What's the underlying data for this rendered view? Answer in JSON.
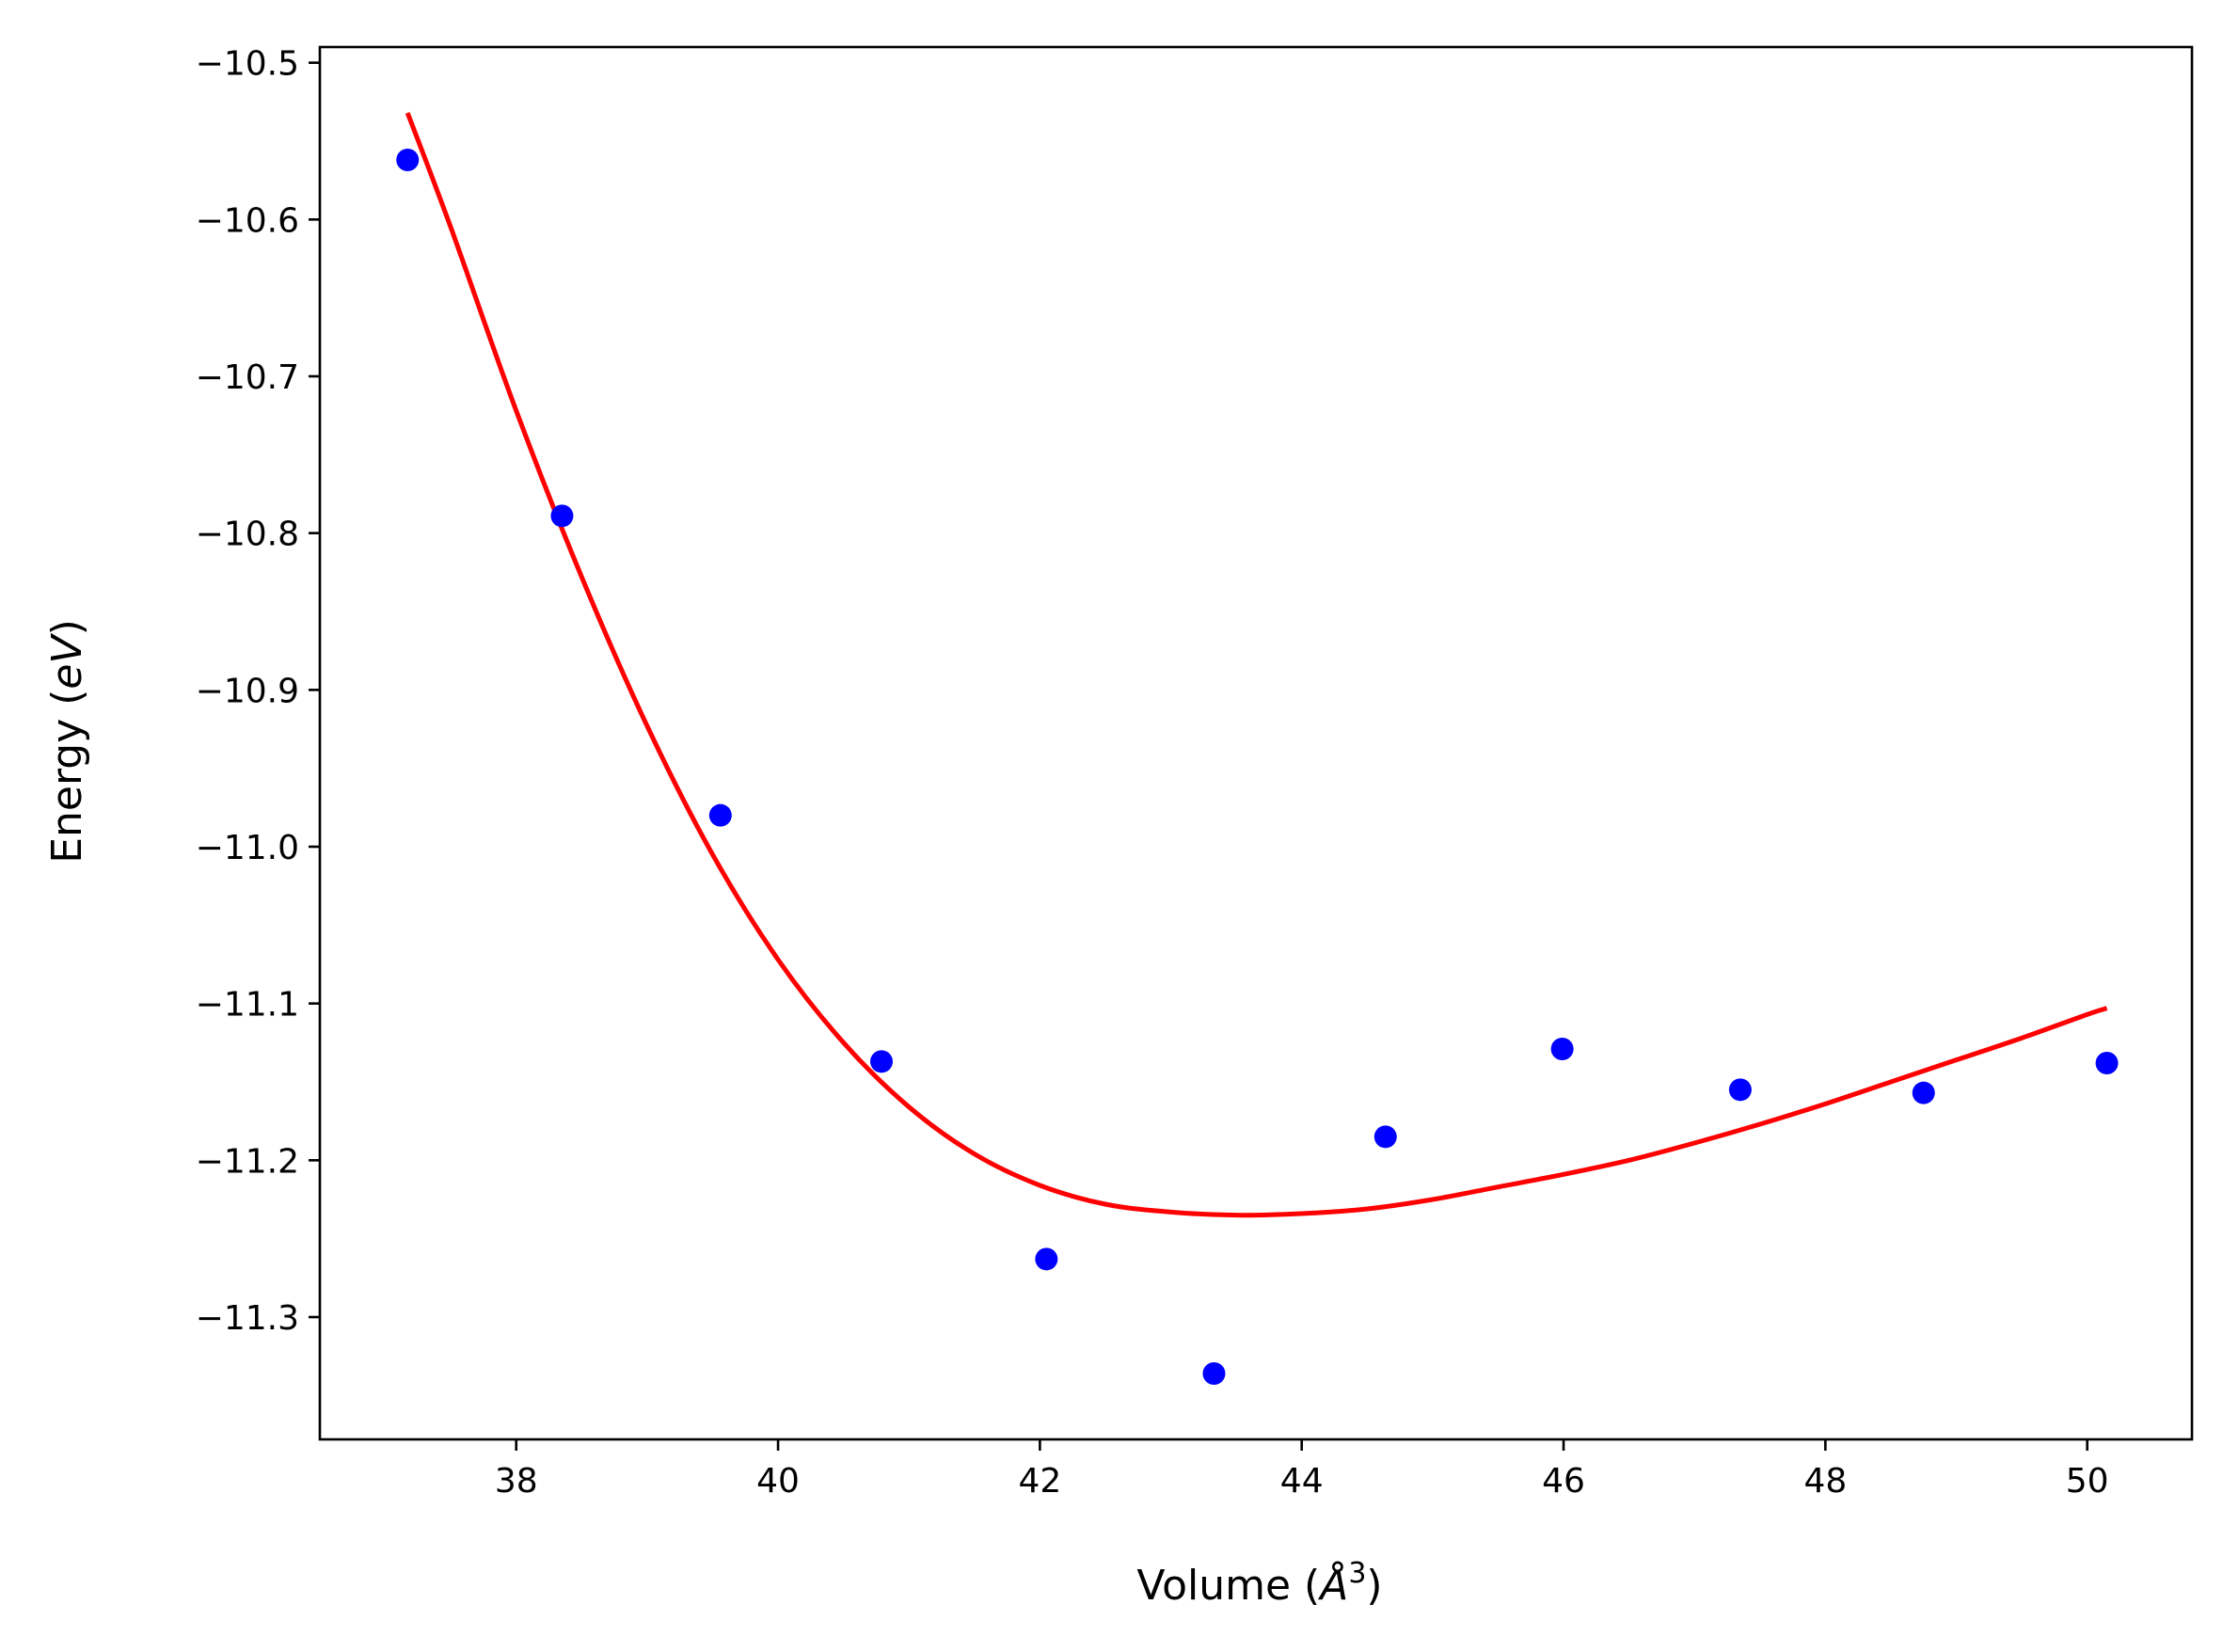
{
  "chart_data": {
    "type": "scatter",
    "title": "",
    "xlabel_prefix": "Volume (",
    "xlabel_symbol": "Å",
    "xlabel_sup": "3",
    "xlabel_suffix": ")",
    "ylabel_prefix": "Energy (",
    "ylabel_symbol": "eV",
    "ylabel_suffix": ")",
    "xlim": [
      36.5,
      50.8
    ],
    "ylim": [
      -11.378,
      -10.49
    ],
    "xticks": [
      38,
      40,
      42,
      44,
      46,
      48,
      50
    ],
    "xtick_labels": [
      "38",
      "40",
      "42",
      "44",
      "46",
      "48",
      "50"
    ],
    "yticks": [
      -10.5,
      -10.6,
      -10.7,
      -10.8,
      -10.9,
      -11.0,
      -11.1,
      -11.2,
      -11.3
    ],
    "ytick_labels": [
      "−10.5",
      "−10.6",
      "−10.7",
      "−10.8",
      "−10.9",
      "−11.0",
      "−11.1",
      "−11.2",
      "−11.3"
    ],
    "grid": false,
    "series": [
      {
        "kind": "points",
        "color": "#0000ff",
        "x": [
          37.17,
          38.35,
          39.56,
          40.79,
          42.05,
          43.33,
          44.64,
          45.99,
          47.35,
          48.75,
          50.15
        ],
        "y": [
          -10.562,
          -10.789,
          -10.98,
          -11.137,
          -11.263,
          -11.336,
          -11.185,
          -11.129,
          -11.155,
          -11.157,
          -11.138
        ]
      },
      {
        "kind": "fit-line",
        "color": "#ff0000",
        "x": [
          37.17,
          37.5,
          38.0,
          38.5,
          39.0,
          39.5,
          40.0,
          40.5,
          41.0,
          41.5,
          42.0,
          42.5,
          43.0,
          43.5,
          44.0,
          44.5,
          45.0,
          45.5,
          46.0,
          46.5,
          47.0,
          47.5,
          48.0,
          48.5,
          49.0,
          49.5,
          50.0,
          50.15
        ],
        "y": [
          -10.532,
          -10.605,
          -10.722,
          -10.828,
          -10.923,
          -11.005,
          -11.072,
          -11.125,
          -11.166,
          -11.196,
          -11.216,
          -11.228,
          -11.233,
          -11.235,
          -11.234,
          -11.231,
          -11.225,
          -11.217,
          -11.209,
          -11.2,
          -11.189,
          -11.177,
          -11.164,
          -11.15,
          -11.136,
          -11.122,
          -11.107,
          -11.103
        ]
      }
    ]
  }
}
